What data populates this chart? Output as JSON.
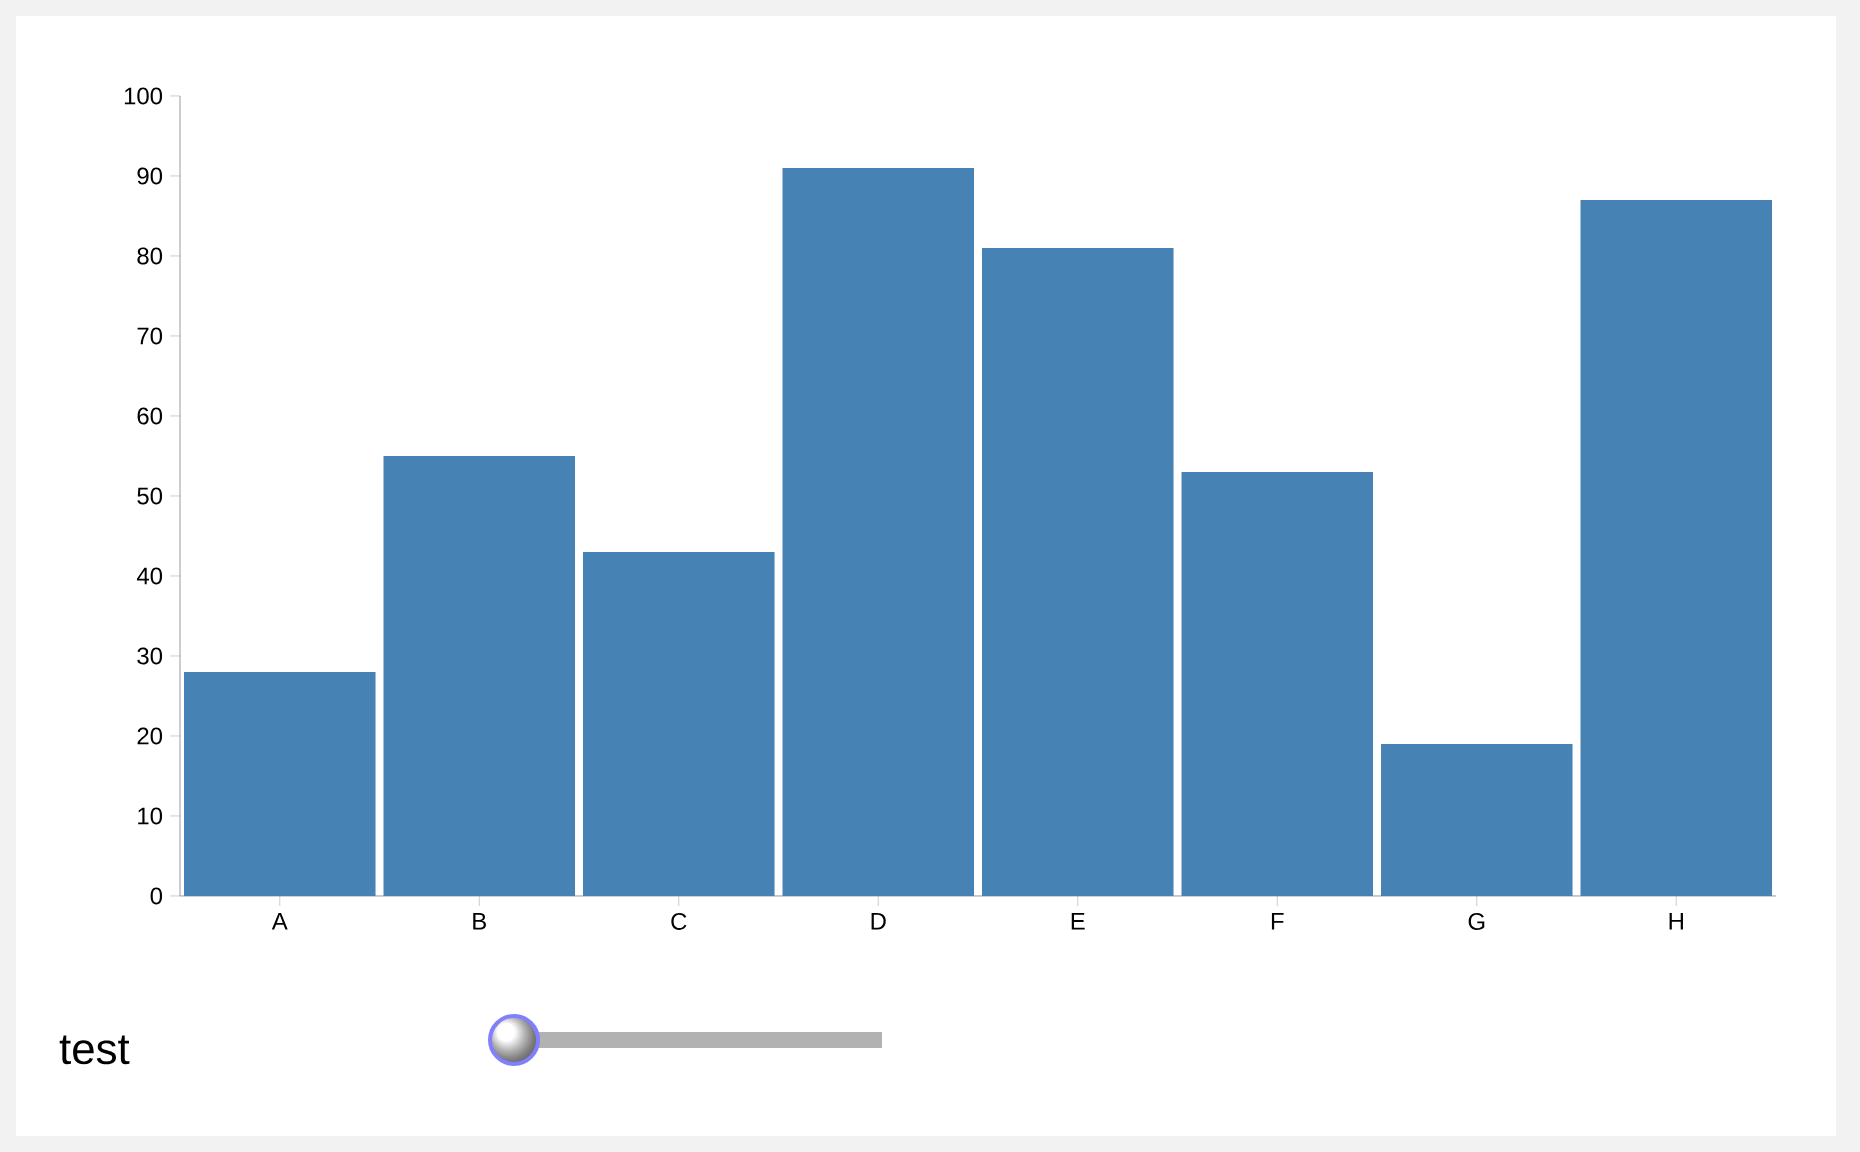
{
  "chart_data": {
    "type": "bar",
    "categories": [
      "A",
      "B",
      "C",
      "D",
      "E",
      "F",
      "G",
      "H"
    ],
    "values": [
      28,
      55,
      43,
      91,
      81,
      53,
      19,
      87
    ],
    "color": "#4682b4",
    "ylim": [
      0,
      100
    ],
    "yticks": [
      0,
      10,
      20,
      30,
      40,
      50,
      60,
      70,
      80,
      90,
      100
    ],
    "annotations": [
      "test"
    ]
  }
}
